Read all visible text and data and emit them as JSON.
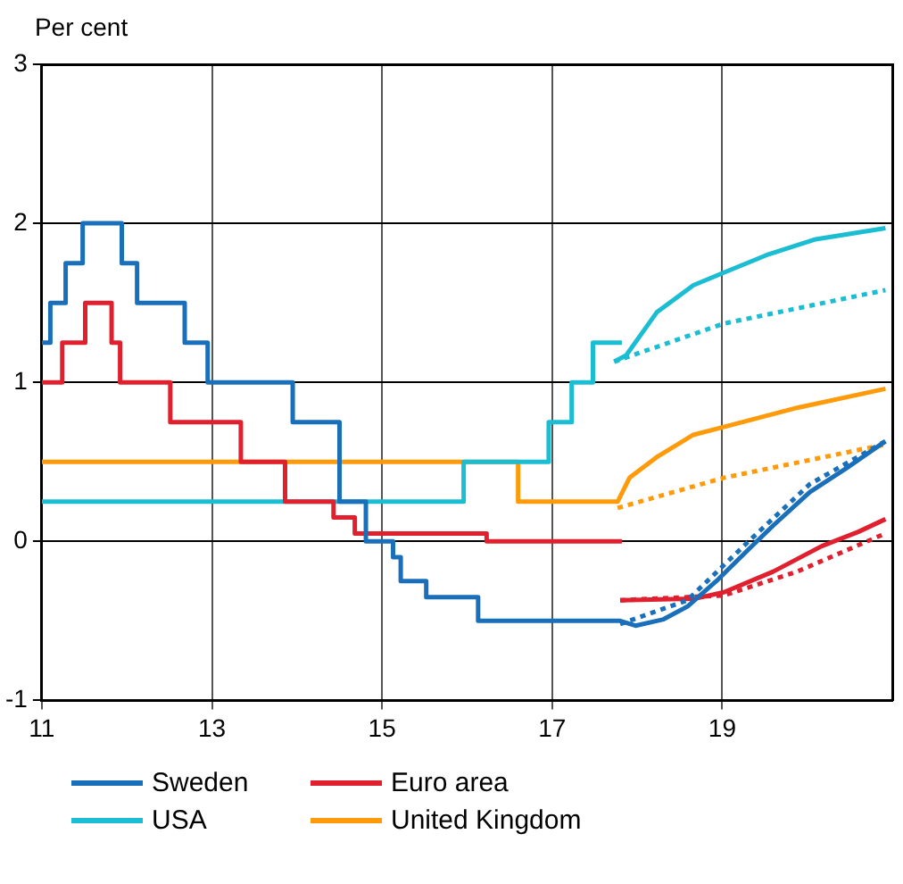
{
  "chart_data": {
    "type": "line",
    "ylabel": "Per cent",
    "xlim": [
      11,
      21
    ],
    "xticks": [
      11,
      13,
      15,
      17,
      19
    ],
    "ylim": [
      -1,
      3
    ],
    "yticks": [
      -1,
      0,
      1,
      2,
      3
    ],
    "grid": true,
    "legend": "bottom",
    "marker": "none",
    "series": [
      {
        "name": "Sweden",
        "color": "#1a6fba",
        "x": [
          11,
          11.1,
          11.1,
          11.28,
          11.28,
          11.48,
          11.48,
          11.94,
          11.94,
          12.12,
          12.12,
          12.68,
          12.68,
          12.95,
          12.95,
          13.95,
          13.95,
          14.5,
          14.5,
          14.81,
          14.81,
          15.13,
          15.13,
          15.22,
          15.22,
          15.52,
          15.52,
          16.13,
          16.13,
          17.8,
          17.98,
          18.31,
          18.59,
          18.95,
          19.31,
          19.6,
          20.03,
          20.46,
          20.92
        ],
        "values": [
          1.25,
          1.25,
          1.5,
          1.5,
          1.75,
          1.75,
          2.0,
          2.0,
          1.75,
          1.75,
          1.5,
          1.5,
          1.25,
          1.25,
          1.0,
          1.0,
          0.75,
          0.75,
          0.25,
          0.25,
          0,
          0,
          -0.1,
          -0.1,
          -0.25,
          -0.25,
          -0.35,
          -0.35,
          -0.5,
          -0.5,
          -0.53,
          -0.49,
          -0.41,
          -0.24,
          -0.05,
          0.1,
          0.31,
          0.46,
          0.63
        ]
      },
      {
        "name": "Euro area",
        "type": "step",
        "color": "#e0202e",
        "x": [
          11,
          11.24,
          11.51,
          11.82,
          11.92,
          12.51,
          13.34,
          13.86,
          14.43,
          14.68,
          16.23,
          17.82
        ],
        "values": [
          1.0,
          1.25,
          1.5,
          1.25,
          1.0,
          0.75,
          0.5,
          0.25,
          0.15,
          0.05,
          0,
          0
        ]
      },
      {
        "name": "USA",
        "type": "step",
        "color": "#1bbdd3",
        "x": [
          11,
          15.96,
          16.96,
          17.23,
          17.48,
          17.82
        ],
        "values": [
          0.25,
          0.5,
          0.75,
          1.0,
          1.25,
          1.25
        ]
      },
      {
        "name": "United Kingdom",
        "color": "#ff9b0a",
        "x": [
          11,
          16.6,
          16.6,
          17.77,
          17.91,
          18.23,
          18.66,
          19.02,
          19.88,
          20.92
        ],
        "values": [
          0.5,
          0.5,
          0.25,
          0.25,
          0.4,
          0.53,
          0.67,
          0.72,
          0.84,
          0.96
        ]
      },
      {
        "color": "#1a6fba",
        "line_style": "dotted",
        "x": [
          17.8,
          18.59,
          19.31,
          20.03,
          20.92
        ],
        "values": [
          -0.52,
          -0.37,
          0.0,
          0.36,
          0.63
        ]
      },
      {
        "color": "#e0202e",
        "x": [
          17.8,
          18.68,
          19.02,
          19.6,
          20.17,
          20.6,
          20.92
        ],
        "values": [
          -0.37,
          -0.36,
          -0.32,
          -0.19,
          -0.03,
          0.06,
          0.14
        ]
      },
      {
        "color": "#e0202e",
        "line_style": "dotted",
        "x": [
          17.8,
          19.02,
          19.88,
          20.92
        ],
        "values": [
          -0.37,
          -0.34,
          -0.19,
          0.05
        ]
      },
      {
        "color": "#1bbdd3",
        "x": [
          17.73,
          17.87,
          18.23,
          18.66,
          19.02,
          19.52,
          20.1,
          20.92
        ],
        "values": [
          1.13,
          1.17,
          1.44,
          1.61,
          1.69,
          1.8,
          1.9,
          1.97
        ]
      },
      {
        "color": "#1bbdd3",
        "line_style": "dotted",
        "x": [
          17.73,
          19.02,
          20.92
        ],
        "values": [
          1.13,
          1.37,
          1.58
        ]
      },
      {
        "color": "#ff9b0a",
        "line_style": "dotted",
        "x": [
          17.77,
          19.02,
          20.92
        ],
        "values": [
          0.21,
          0.4,
          0.61
        ]
      }
    ]
  }
}
